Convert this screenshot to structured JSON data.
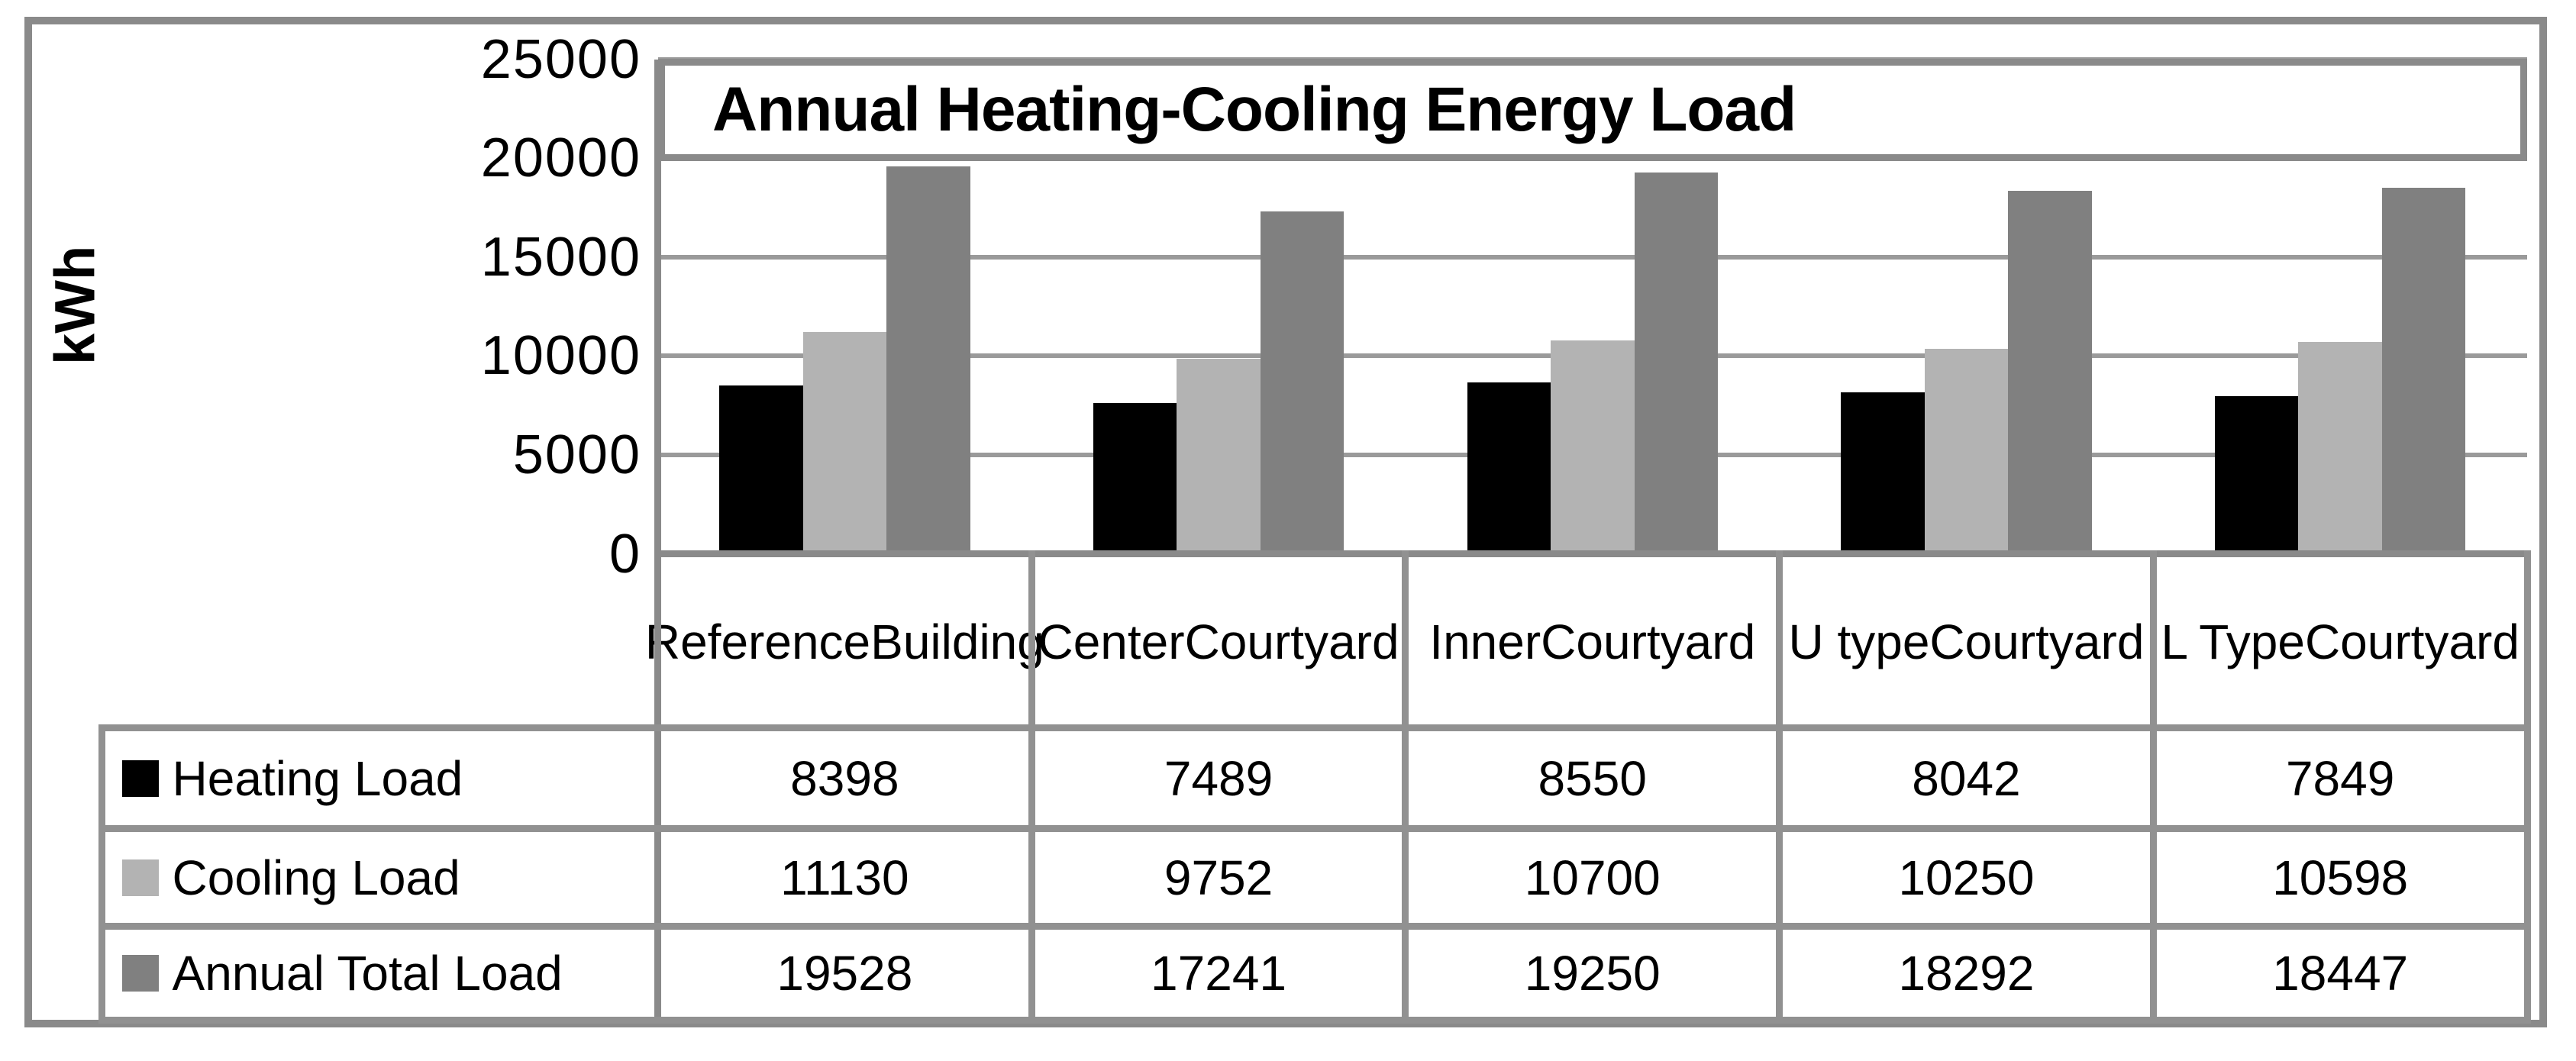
{
  "chart_data": {
    "type": "bar",
    "title": "Annual Heating-Cooling Energy Load",
    "y_axis_title": "kWh",
    "categories": [
      "Reference Building",
      "Center Courtyard",
      "Inner Courtyard",
      "U type Courtyard",
      "L Type Courtyard"
    ],
    "series": [
      {
        "name": "Heating Load",
        "color": "#000000",
        "values": [
          8398,
          7489,
          8550,
          8042,
          7849
        ]
      },
      {
        "name": "Cooling Load",
        "color": "#b3b3b3",
        "values": [
          11130,
          9752,
          10700,
          10250,
          10598
        ]
      },
      {
        "name": "Annual Total Load",
        "color": "#808080",
        "values": [
          19528,
          17241,
          19250,
          18292,
          18447
        ]
      }
    ],
    "y_ticks": [
      0,
      5000,
      10000,
      15000,
      20000,
      25000
    ],
    "ylim": [
      0,
      25000
    ],
    "grid": true,
    "data_table": true,
    "legend_position": "data-table-left"
  },
  "colors": {
    "background": "#ffffff",
    "frame_border": "#8a8a8a",
    "axis_line": "#8a8a8a",
    "gridline": "#9a9a9a",
    "table_line": "#919191",
    "text": "#000000"
  }
}
